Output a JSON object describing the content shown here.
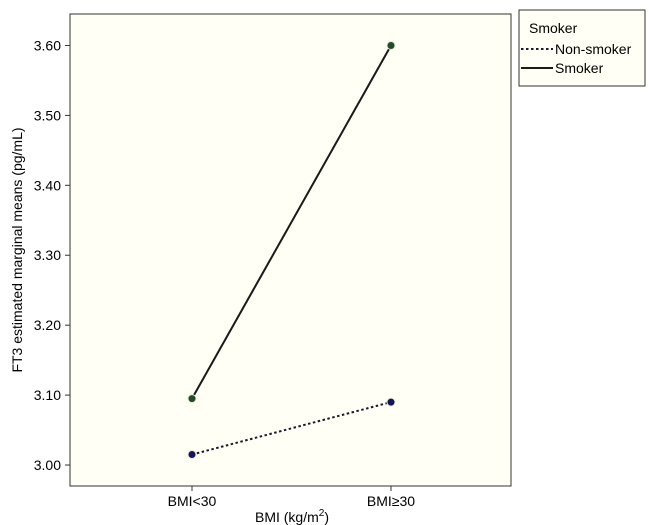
{
  "chart_data": {
    "type": "line",
    "title": "",
    "xlabel_prefix": "BMI (kg/m",
    "xlabel_sup": "2",
    "xlabel_suffix": ")",
    "ylabel": "FT3 estimated marginal means (pg/mL)",
    "categories": [
      "BMI<30",
      "BMI≥30"
    ],
    "ylim": [
      2.97,
      3.645
    ],
    "yticks": [
      "3.00",
      "3.10",
      "3.20",
      "3.30",
      "3.40",
      "3.50",
      "3.60"
    ],
    "grid": false,
    "plot_background": "#fffff5",
    "legend": {
      "title": "Smoker",
      "placement": "top-right-outside",
      "entries": [
        "Non-smoker",
        "Smoker"
      ]
    },
    "series": [
      {
        "name": "Non-smoker",
        "values": [
          3.015,
          3.09
        ],
        "line_style": "dotted",
        "line_color": "#1a1a2e",
        "marker_color": "#14145a"
      },
      {
        "name": "Smoker",
        "values": [
          3.095,
          3.6
        ],
        "line_style": "solid",
        "line_color": "#1a1a1a",
        "marker_color": "#1f4d2a"
      }
    ]
  }
}
